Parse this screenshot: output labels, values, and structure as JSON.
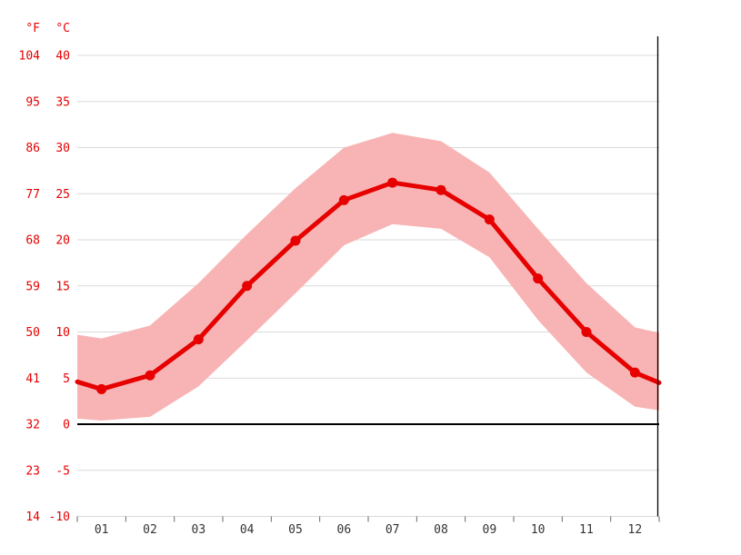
{
  "chart": {
    "unit_labels": {
      "fahrenheit": "°F",
      "celsius": "°C"
    },
    "colors": {
      "line": "#e60000",
      "band": "#f8b4b4",
      "grid": "#d9d9d9",
      "zero_line": "#000000",
      "axis_line": "#000000",
      "label_red": "#e60000",
      "label_black": "#333333"
    }
  },
  "chart_data": {
    "type": "line",
    "title": "",
    "xlabel": "",
    "ylabel": "",
    "x": [
      "01",
      "02",
      "03",
      "04",
      "05",
      "06",
      "07",
      "08",
      "09",
      "10",
      "11",
      "12"
    ],
    "ylim_celsius": [
      -10,
      40
    ],
    "y_ticks_celsius": [
      40,
      35,
      30,
      25,
      20,
      15,
      10,
      5,
      0,
      -5,
      -10
    ],
    "y_ticks_fahrenheit": [
      104,
      95,
      86,
      77,
      68,
      59,
      50,
      41,
      32,
      23,
      14
    ],
    "grid": true,
    "legend": "none",
    "series": [
      {
        "name": "mean_temperature_c",
        "values": [
          3.8,
          5.3,
          9.2,
          15.0,
          19.9,
          24.3,
          26.2,
          25.4,
          22.2,
          15.8,
          10.0,
          5.6
        ],
        "edge_values": [
          4.6,
          4.5
        ]
      },
      {
        "name": "band_max_temperature_c",
        "values": [
          9.3,
          10.7,
          15.3,
          20.6,
          25.6,
          30.0,
          31.6,
          30.7,
          27.3,
          21.2,
          15.3,
          10.5
        ],
        "edge_values": [
          9.7,
          9.9
        ]
      },
      {
        "name": "band_min_temperature_c",
        "values": [
          0.4,
          0.8,
          4.1,
          9.1,
          14.2,
          19.4,
          21.7,
          21.2,
          18.1,
          11.3,
          5.6,
          1.9
        ],
        "edge_values": [
          0.6,
          1.5
        ]
      }
    ]
  }
}
